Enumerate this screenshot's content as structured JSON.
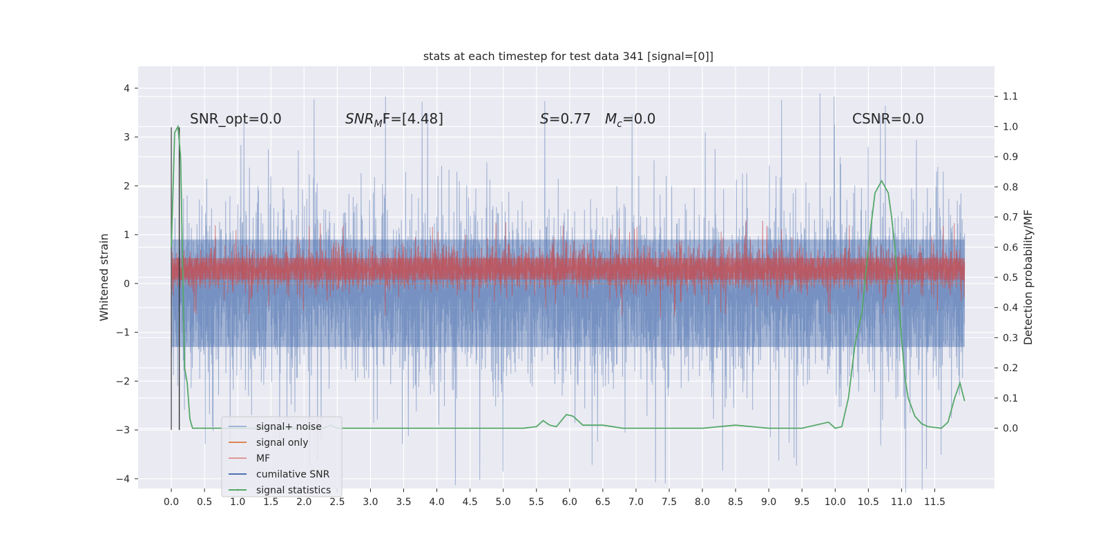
{
  "chart_data": {
    "type": "line",
    "title": "stats at each timestep for test data 341 [signal=[0]]",
    "xlabel": "",
    "ylabel": "Whitened strain",
    "ylabel_right": "Detection probability/MF",
    "xlim": [
      -0.5,
      12.4
    ],
    "ylim": [
      -4.2,
      4.45
    ],
    "ylim_right": [
      -0.2,
      1.2
    ],
    "x_ticks": [
      "0.0",
      "0.5",
      "1.0",
      "1.5",
      "2.0",
      "2.5",
      "3.0",
      "3.5",
      "4.0",
      "4.5",
      "5.0",
      "5.5",
      "6.0",
      "6.5",
      "7.0",
      "7.5",
      "8.0",
      "8.5",
      "9.0",
      "9.5",
      "10.0",
      "10.5",
      "11.0",
      "11.5"
    ],
    "y_ticks": [
      "−4",
      "−3",
      "−2",
      "−1",
      "0",
      "1",
      "2",
      "3",
      "4"
    ],
    "y_ticks_right": [
      "0.0",
      "0.1",
      "0.2",
      "0.3",
      "0.4",
      "0.5",
      "0.6",
      "0.7",
      "0.8",
      "0.9",
      "1.0",
      "1.1"
    ],
    "grid": true,
    "legend_position": "lower-left",
    "annotations": [
      {
        "text": "SNR_opt=0.0",
        "x": 0.2,
        "y": 3.3
      },
      {
        "text": "SNR",
        "sub": "M",
        "rest": "F=[4.48]",
        "x": 2.6,
        "y": 3.3
      },
      {
        "text": "S",
        "rest": "=0.77",
        "x": 5.6,
        "y": 3.3
      },
      {
        "text": "M",
        "sub": "c",
        "rest": "=0.0",
        "x": 6.6,
        "y": 3.3
      },
      {
        "text": "CSNR=0.0",
        "x": 10.4,
        "y": 3.3
      }
    ],
    "series": [
      {
        "name": "signal+ noise",
        "color": "#4c72b0",
        "kind": "noise-band",
        "center": -0.2,
        "typical_amplitude": 1.6,
        "max_amplitude": 4.1
      },
      {
        "name": "signal only",
        "color": "#dd8452",
        "values_flat": 0.0
      },
      {
        "name": "MF",
        "color": "#c44e52",
        "kind": "noise-band",
        "center": 0.3,
        "typical_amplitude": 0.4,
        "max_amplitude": 1.0
      },
      {
        "name": "cumilative SNR",
        "color": "#4c72b0"
      },
      {
        "name": "signal statistics",
        "color": "#55a868",
        "axis": "right",
        "x": [
          0.0,
          0.05,
          0.1,
          0.14,
          0.2,
          0.24,
          0.28,
          0.32,
          0.5,
          1.0,
          2.0,
          2.3,
          2.4,
          2.5,
          3.0,
          4.0,
          4.6,
          5.0,
          5.3,
          5.5,
          5.6,
          5.7,
          5.8,
          5.95,
          6.05,
          6.2,
          6.5,
          6.8,
          7.0,
          8.0,
          8.5,
          9.0,
          9.5,
          9.9,
          10.0,
          10.1,
          10.2,
          10.3,
          10.4,
          10.5,
          10.6,
          10.7,
          10.8,
          10.85,
          10.9,
          11.0,
          11.05,
          11.1,
          11.2,
          11.3,
          11.4,
          11.6,
          11.7,
          11.8,
          11.88,
          11.95
        ],
        "y": [
          0.6,
          0.98,
          1.0,
          0.9,
          0.2,
          0.15,
          0.03,
          0.0,
          0.0,
          0.0,
          0.0,
          0.0,
          0.01,
          0.0,
          0.0,
          0.0,
          0.0,
          0.0,
          0.0,
          0.005,
          0.025,
          0.01,
          0.005,
          0.045,
          0.04,
          0.01,
          0.01,
          0.0,
          0.0,
          0.0,
          0.01,
          0.0,
          0.0,
          0.02,
          0.0,
          0.005,
          0.1,
          0.28,
          0.38,
          0.6,
          0.78,
          0.82,
          0.78,
          0.7,
          0.6,
          0.3,
          0.17,
          0.1,
          0.04,
          0.015,
          0.005,
          0.0,
          0.02,
          0.1,
          0.15,
          0.09
        ]
      }
    ],
    "vertical_markers": [
      {
        "x": 0.0,
        "y_range": [
          -3.0,
          3.2
        ],
        "color": "#555555"
      },
      {
        "x": 0.12,
        "y_range": [
          -3.0,
          3.2
        ],
        "color": "#333333"
      }
    ]
  }
}
